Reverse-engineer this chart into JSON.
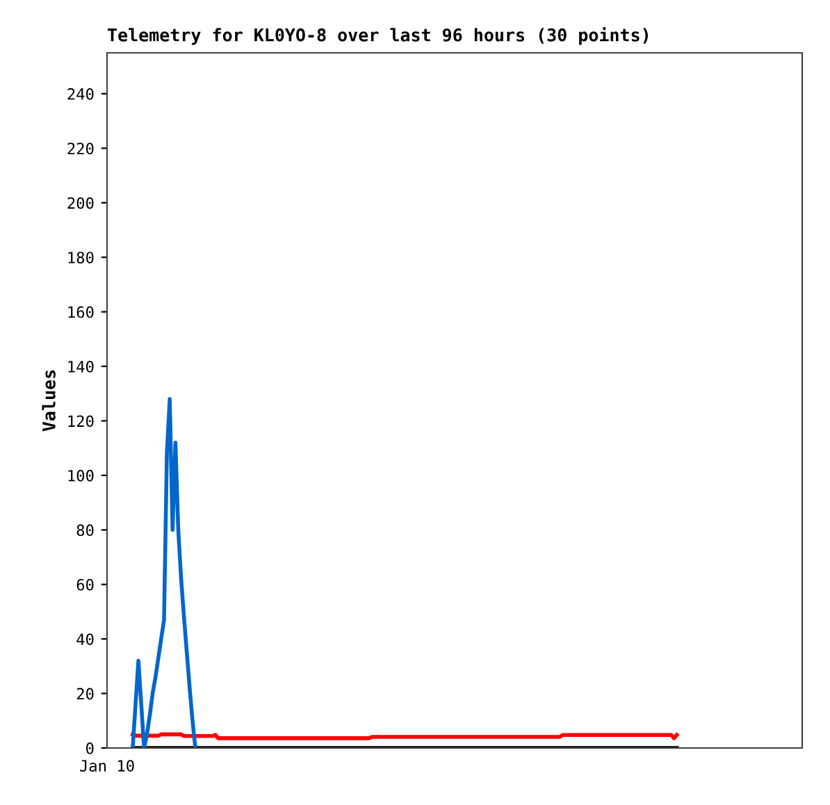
{
  "chart_data": {
    "type": "line",
    "title": "Telemetry for KL0YO-8 over last 96 hours (30 points)",
    "ylabel": "Values",
    "annotations": [
      "Jan 10"
    ],
    "ylim": [
      0,
      255
    ],
    "yticks": [
      0,
      20,
      40,
      60,
      80,
      100,
      120,
      140,
      160,
      180,
      200,
      220,
      240
    ],
    "grid": false,
    "legend": false,
    "marker": "none",
    "line_style": "solid",
    "categories": [
      null,
      null,
      null,
      null,
      null,
      null,
      null,
      null,
      null,
      null,
      null,
      null,
      null,
      null,
      null,
      null,
      null,
      null,
      null,
      null,
      null,
      null,
      null,
      null,
      null,
      null,
      null,
      null,
      null,
      null,
      null,
      null,
      null,
      null,
      null,
      null,
      null,
      null,
      null,
      null,
      null,
      null,
      null,
      null,
      null,
      null,
      null,
      null,
      null,
      null,
      null,
      null,
      null,
      null,
      null,
      null,
      null,
      null,
      null,
      null,
      null,
      null,
      null,
      null,
      null,
      null,
      null,
      null,
      null,
      null,
      null,
      null,
      null,
      null,
      null,
      null,
      null,
      null,
      null,
      null,
      null,
      null,
      null,
      null,
      null,
      null,
      null,
      null,
      null,
      null,
      null,
      null,
      null,
      null,
      null,
      null,
      null,
      null,
      null,
      null,
      null,
      null,
      null,
      null,
      null,
      null,
      null,
      null,
      null,
      null,
      null,
      null,
      null,
      null,
      null,
      null,
      null,
      null,
      null,
      null,
      null,
      null,
      null,
      null,
      null,
      null,
      null,
      null,
      null,
      null,
      null,
      null,
      null,
      null,
      null,
      null,
      null,
      null,
      null,
      null,
      null,
      null,
      null,
      null,
      null,
      null,
      null,
      null,
      null,
      null,
      null,
      null,
      null,
      null,
      null,
      null,
      null,
      null,
      null,
      null,
      null,
      null,
      null,
      null,
      null,
      null,
      null,
      null,
      null,
      null,
      null,
      null,
      null,
      null,
      null,
      null,
      null,
      null,
      null,
      null,
      null,
      null,
      null,
      null,
      null,
      null,
      null,
      null,
      null,
      null,
      null,
      null,
      null,
      null,
      null,
      null,
      null,
      null,
      null,
      null,
      null,
      null,
      null,
      null,
      null,
      null,
      null,
      null,
      null,
      null,
      null,
      null,
      null,
      null,
      null,
      null,
      null,
      null,
      null,
      null,
      null,
      null,
      null,
      null,
      null,
      null,
      null,
      null,
      null,
      null,
      null,
      null,
      null,
      null,
      null,
      null,
      null,
      null,
      null,
      null,
      null,
      null,
      null,
      null
    ],
    "series": [
      {
        "color": "#000000",
        "values": [
          null,
          null,
          null,
          null,
          null,
          null,
          null,
          null,
          null,
          0,
          0,
          0,
          0,
          0,
          0,
          0,
          0,
          0,
          0,
          0,
          0,
          0,
          0,
          0,
          0,
          0,
          0,
          0,
          0,
          0,
          0,
          0,
          0,
          0,
          0,
          0,
          0,
          0,
          0,
          0,
          0,
          0,
          0,
          0,
          0,
          0,
          0,
          0,
          0,
          0,
          0,
          0,
          0,
          0,
          0,
          0,
          0,
          0,
          0,
          0,
          0,
          0,
          0,
          0,
          0,
          0,
          0,
          0,
          0,
          0,
          0,
          0,
          0,
          0,
          0,
          0,
          0,
          0,
          0,
          0,
          0,
          0,
          0,
          0,
          0,
          0,
          0,
          0,
          0,
          0,
          0,
          0,
          0,
          0,
          0,
          0,
          0,
          0,
          0,
          0,
          0,
          0,
          0,
          0,
          0,
          0,
          0,
          0,
          0,
          0,
          0,
          0,
          0,
          0,
          0,
          0,
          0,
          0,
          0,
          0,
          0,
          0,
          0,
          0,
          0,
          0,
          0,
          0,
          0,
          0,
          0,
          0,
          0,
          0,
          0,
          0,
          0,
          0,
          0,
          0,
          0,
          0,
          0,
          0,
          0,
          0,
          0,
          0,
          0,
          0,
          0,
          0,
          0,
          0,
          0,
          0,
          0,
          0,
          0,
          0,
          0,
          0,
          0,
          0,
          0,
          0,
          0,
          0,
          0,
          0,
          0,
          0,
          0,
          0,
          0,
          0,
          0,
          0,
          0,
          0,
          0,
          0,
          0,
          0,
          0,
          0,
          0,
          0,
          0,
          0,
          0,
          0,
          0,
          0,
          0,
          0,
          0,
          0,
          0,
          0,
          0,
          null,
          null,
          null,
          null,
          null,
          null,
          null,
          null,
          null,
          null,
          null,
          null,
          null,
          null,
          null,
          null,
          null,
          null,
          null,
          null,
          null,
          null,
          null,
          null,
          null,
          null,
          null,
          null,
          null,
          null,
          null,
          null,
          null,
          null,
          null,
          null,
          null,
          null,
          null,
          null,
          null,
          null,
          null
        ]
      },
      {
        "color": "#ff0000",
        "values": [
          null,
          null,
          null,
          null,
          null,
          null,
          null,
          null,
          null,
          5,
          4.5,
          4.5,
          4.5,
          4.5,
          4.5,
          4.5,
          4.5,
          4.5,
          4.5,
          5,
          5,
          5,
          5,
          5,
          5,
          5,
          5,
          4.4,
          4.4,
          4.4,
          4.4,
          4.4,
          4.4,
          4.4,
          4.4,
          4.4,
          4.4,
          4.4,
          4.8,
          3.6,
          3.6,
          3.6,
          3.6,
          3.6,
          3.6,
          3.6,
          3.6,
          3.6,
          3.6,
          3.6,
          3.6,
          3.6,
          3.6,
          3.6,
          3.6,
          3.6,
          3.6,
          3.6,
          3.6,
          3.6,
          3.6,
          3.6,
          3.6,
          3.6,
          3.6,
          3.6,
          3.6,
          3.6,
          3.6,
          3.6,
          3.6,
          3.6,
          3.6,
          3.6,
          3.6,
          3.6,
          3.6,
          3.6,
          3.6,
          3.6,
          3.6,
          3.6,
          3.6,
          3.6,
          3.6,
          3.6,
          3.6,
          3.6,
          3.6,
          3.6,
          3.6,
          3.6,
          3.6,
          4.1,
          4.1,
          4.1,
          4.1,
          4.1,
          4.1,
          4.1,
          4.1,
          4.1,
          4.1,
          4.1,
          4.1,
          4.1,
          4.1,
          4.1,
          4.1,
          4.1,
          4.1,
          4.1,
          4.1,
          4.1,
          4.1,
          4.1,
          4.1,
          4.1,
          4.1,
          4.1,
          4.1,
          4.1,
          4.1,
          4.1,
          4.1,
          4.1,
          4.1,
          4.1,
          4.1,
          4.1,
          4.1,
          4.1,
          4.1,
          4.1,
          4.1,
          4.1,
          4.1,
          4.1,
          4.1,
          4.1,
          4.1,
          4.1,
          4.1,
          4.1,
          4.1,
          4.1,
          4.1,
          4.1,
          4.1,
          4.1,
          4.1,
          4.1,
          4.1,
          4.1,
          4.1,
          4.1,
          4.1,
          4.1,
          4.1,
          4.1,
          4.8,
          4.8,
          4.8,
          4.8,
          4.8,
          4.8,
          4.8,
          4.8,
          4.8,
          4.8,
          4.8,
          4.8,
          4.8,
          4.8,
          4.8,
          4.8,
          4.8,
          4.8,
          4.8,
          4.8,
          4.8,
          4.8,
          4.8,
          4.8,
          4.8,
          4.8,
          4.8,
          4.8,
          4.8,
          4.8,
          4.8,
          4.8,
          4.8,
          4.8,
          4.8,
          4.8,
          4.8,
          4.8,
          4.8,
          3.6,
          4.8,
          null,
          null,
          null,
          null,
          null,
          null,
          null,
          null,
          null,
          null,
          null,
          null,
          null,
          null,
          null,
          null,
          null,
          null,
          null,
          null,
          null,
          null,
          null,
          null,
          null,
          null,
          null,
          null,
          null,
          null,
          null,
          null,
          null,
          null,
          null,
          null,
          null,
          null,
          null,
          null,
          null,
          null,
          null
        ]
      },
      {
        "color": "#0066cc",
        "values": [
          null,
          null,
          null,
          null,
          null,
          null,
          null,
          null,
          null,
          0,
          16,
          32,
          16,
          0,
          5,
          12,
          20,
          26,
          33,
          40,
          47,
          108,
          128,
          80,
          112,
          80,
          62,
          48,
          35,
          22,
          10,
          0,
          null,
          null,
          null,
          null,
          null,
          null,
          null,
          null,
          null,
          null,
          null,
          null,
          null,
          null,
          null,
          null,
          null,
          null,
          null,
          null,
          null,
          null,
          null,
          null,
          null,
          null,
          null,
          null,
          null,
          null,
          null,
          null,
          null,
          null,
          null,
          null,
          null,
          null,
          null,
          null,
          null,
          null,
          null,
          null,
          null,
          null,
          null,
          null,
          null,
          null,
          null,
          null,
          null,
          null,
          null,
          null,
          null,
          null,
          null,
          null,
          null,
          null,
          null,
          null,
          null,
          null,
          null,
          null,
          null,
          null,
          null,
          null,
          null,
          null,
          null,
          null,
          null,
          null,
          null,
          null,
          null,
          null,
          null,
          null,
          null,
          null,
          null,
          null,
          null,
          null,
          null,
          null,
          null,
          null,
          null,
          null,
          null,
          null,
          null,
          null,
          null,
          null,
          null,
          null,
          null,
          null,
          null,
          null,
          null,
          null,
          null,
          null,
          null,
          null,
          null,
          null,
          null,
          null,
          null,
          null,
          null,
          null,
          null,
          null,
          null,
          null,
          null,
          null,
          null,
          null,
          null,
          null,
          null,
          null,
          null,
          null,
          null,
          null,
          null,
          null,
          null,
          null,
          null,
          null,
          null,
          null,
          null,
          null,
          null,
          null,
          null,
          null,
          null,
          null,
          null,
          null,
          null,
          null,
          null,
          null,
          null,
          null,
          null,
          null,
          null,
          null,
          null,
          null,
          null,
          null,
          null,
          null,
          null,
          null,
          null,
          null,
          null,
          null,
          null,
          null,
          null,
          null,
          null,
          null,
          null,
          null,
          null,
          null,
          null,
          null,
          null,
          null,
          null,
          null,
          null,
          null,
          null,
          null,
          null,
          null,
          null,
          null,
          null,
          null,
          null,
          null,
          null,
          null,
          null,
          null,
          null,
          null
        ]
      }
    ]
  }
}
